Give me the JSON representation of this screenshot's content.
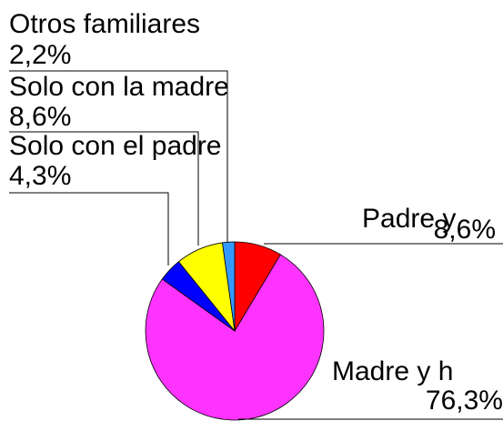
{
  "chart_data": {
    "type": "pie",
    "categories": [
      "Padre y",
      "Madre y h",
      "Solo con el padre",
      "Solo con la madre",
      "Otros familiares"
    ],
    "values": [
      8.6,
      76.3,
      4.3,
      8.6,
      2.2
    ],
    "value_labels": [
      "8,6%",
      "76,3%",
      "4,3%",
      "8,6%",
      "2,2%"
    ],
    "colors": [
      "#ff0000",
      "#ff33ff",
      "#0000ff",
      "#ffff00",
      "#3399ff"
    ]
  }
}
